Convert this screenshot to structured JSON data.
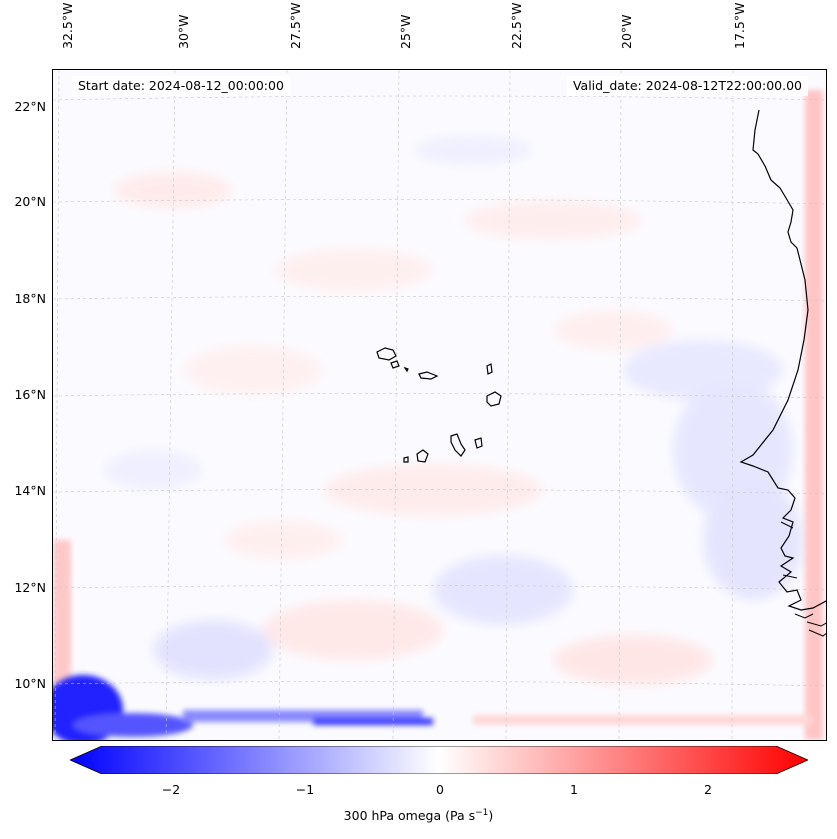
{
  "map": {
    "title_left": "Start date: 2024-08-12_00:00:00",
    "title_right": "Valid_date: 2024-08-12T22:00:00.00",
    "latitude_labels": [
      "22°N",
      "20°N",
      "18°N",
      "16°N",
      "14°N",
      "12°N",
      "10°N"
    ],
    "longitude_labels": [
      "32.5°W",
      "30°W",
      "27.5°W",
      "25°W",
      "22.5°W",
      "20°W",
      "17.5°W"
    ],
    "variable": "300 hPa omega",
    "units": "Pa s",
    "units_exponent": "−1"
  },
  "colorbar": {
    "ticks": [
      "−2",
      "−1",
      "0",
      "1",
      "2"
    ],
    "range": [
      -2.6,
      2.6
    ],
    "colors": {
      "negative": "#0000ff",
      "zero": "#ffffff",
      "positive": "#ff0000"
    },
    "extend": "both"
  }
}
